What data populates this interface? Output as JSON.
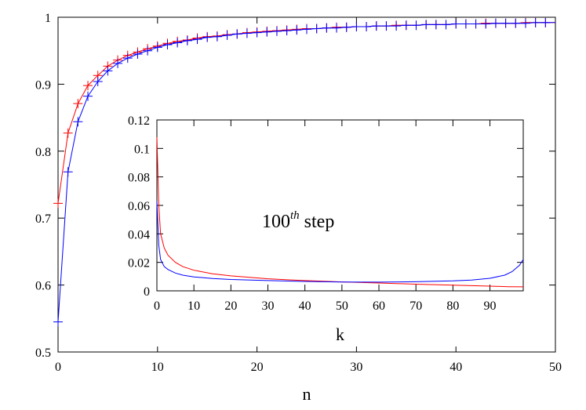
{
  "chart_data": [
    {
      "type": "line",
      "title": "",
      "xlabel": "n",
      "ylabel": "",
      "xlim": [
        0,
        50
      ],
      "ylim": [
        0.5,
        1.0
      ],
      "xticks": [
        "0",
        "10",
        "20",
        "30",
        "40",
        "50"
      ],
      "yticks": [
        "0.5",
        "0.6",
        "0.7",
        "0.8",
        "0.9",
        "1"
      ],
      "grid": false,
      "legend": "none",
      "series": [
        {
          "color": "#ff0000",
          "marker": "plus",
          "x": [
            0,
            1,
            2,
            3,
            4,
            5,
            6,
            7,
            8,
            9,
            10,
            11,
            12,
            13,
            14,
            15,
            16,
            17,
            18,
            19,
            20,
            21,
            22,
            23,
            24,
            25,
            26,
            27,
            28,
            29,
            30,
            31,
            32,
            33,
            34,
            35,
            36,
            37,
            38,
            39,
            40,
            41,
            42,
            43,
            44,
            45,
            46,
            47,
            48,
            49
          ],
          "values": [
            0.722,
            0.827,
            0.871,
            0.898,
            0.913,
            0.927,
            0.936,
            0.943,
            0.948,
            0.953,
            0.957,
            0.961,
            0.964,
            0.966,
            0.969,
            0.971,
            0.972,
            0.974,
            0.975,
            0.977,
            0.978,
            0.979,
            0.98,
            0.981,
            0.982,
            0.983,
            0.983,
            0.984,
            0.985,
            0.985,
            0.986,
            0.986,
            0.987,
            0.987,
            0.988,
            0.988,
            0.988,
            0.989,
            0.989,
            0.989,
            0.99,
            0.99,
            0.99,
            0.991,
            0.991,
            0.991,
            0.991,
            0.992,
            0.992,
            0.992
          ]
        },
        {
          "color": "#0000ff",
          "marker": "plus",
          "x": [
            0,
            1,
            2,
            3,
            4,
            5,
            6,
            7,
            8,
            9,
            10,
            11,
            12,
            13,
            14,
            15,
            16,
            17,
            18,
            19,
            20,
            21,
            22,
            23,
            24,
            25,
            26,
            27,
            28,
            29,
            30,
            31,
            32,
            33,
            34,
            35,
            36,
            37,
            38,
            39,
            40,
            41,
            42,
            43,
            44,
            45,
            46,
            47,
            48,
            49
          ],
          "values": [
            0.545,
            0.769,
            0.844,
            0.882,
            0.904,
            0.92,
            0.931,
            0.939,
            0.945,
            0.95,
            0.955,
            0.959,
            0.962,
            0.965,
            0.967,
            0.97,
            0.971,
            0.973,
            0.975,
            0.976,
            0.977,
            0.978,
            0.979,
            0.98,
            0.981,
            0.982,
            0.983,
            0.984,
            0.984,
            0.985,
            0.986,
            0.986,
            0.987,
            0.987,
            0.987,
            0.988,
            0.988,
            0.989,
            0.989,
            0.989,
            0.99,
            0.99,
            0.99,
            0.99,
            0.991,
            0.991,
            0.991,
            0.991,
            0.992,
            0.992
          ]
        }
      ]
    },
    {
      "type": "line",
      "title": "",
      "annotation": "100",
      "annotation_sup": "th",
      "annotation_suffix": " step",
      "xlabel": "k",
      "ylabel": "",
      "xlim": [
        0,
        99
      ],
      "ylim": [
        0,
        0.12
      ],
      "xticks": [
        "0",
        "10",
        "20",
        "30",
        "40",
        "50",
        "60",
        "70",
        "80",
        "90"
      ],
      "yticks": [
        "0",
        "0.02",
        "0.04",
        "0.06",
        "0.08",
        "0.1",
        "0.12"
      ],
      "grid": false,
      "legend": "none",
      "series": [
        {
          "color": "#ff0000",
          "x": [
            0,
            0.5,
            1,
            2,
            3,
            5,
            7,
            10,
            15,
            20,
            30,
            40,
            50,
            60,
            70,
            80,
            90,
            95,
            99
          ],
          "values": [
            0.108,
            0.06,
            0.04,
            0.03,
            0.025,
            0.02,
            0.017,
            0.0145,
            0.012,
            0.0105,
            0.0085,
            0.0072,
            0.0063,
            0.0055,
            0.0047,
            0.004,
            0.0033,
            0.0029,
            0.0028
          ]
        },
        {
          "color": "#0000ff",
          "x": [
            0,
            0.5,
            1,
            2,
            3,
            5,
            7,
            10,
            15,
            20,
            30,
            40,
            50,
            60,
            70,
            80,
            85,
            90,
            94,
            96,
            98,
            99
          ],
          "values": [
            0.063,
            0.032,
            0.022,
            0.017,
            0.015,
            0.0125,
            0.011,
            0.0098,
            0.0087,
            0.008,
            0.0072,
            0.0066,
            0.0062,
            0.0061,
            0.0064,
            0.007,
            0.0076,
            0.0088,
            0.011,
            0.0135,
            0.018,
            0.022
          ]
        }
      ]
    }
  ]
}
